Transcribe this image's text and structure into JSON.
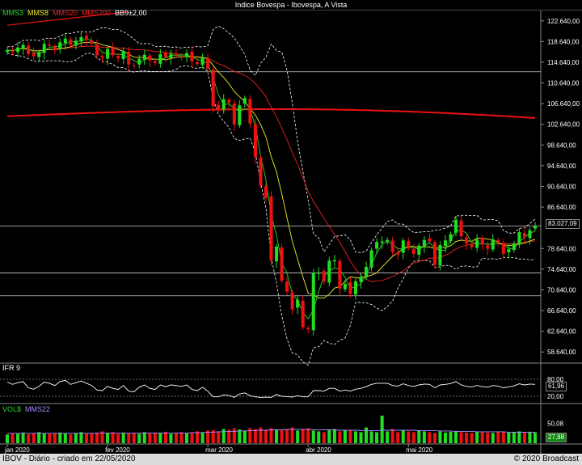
{
  "window": {
    "title": "Indice Bovespa - Ibovespa, A Vista"
  },
  "main_legend": [
    {
      "label": "MMS3",
      "color": "#22dd22"
    },
    {
      "label": "MMS8",
      "color": "#eeee22"
    },
    {
      "label": "MMS20",
      "color": "#ee2222"
    },
    {
      "label": "MMS200",
      "color": "#ee2222"
    },
    {
      "label": "BB9±2,00",
      "color": "#ffffff"
    }
  ],
  "ifr_legend": {
    "label": "IFR 9",
    "color": "#ffffff"
  },
  "vol_legend": [
    {
      "label": "VOL$",
      "color": "#22dd22"
    },
    {
      "label": "MMS22",
      "color": "#aa88ff"
    }
  ],
  "footer": {
    "left": "IBOV - Diário - criado em 22/05/2020",
    "right": "© 2020 Broadcast"
  },
  "colors": {
    "up": "#22dd22",
    "down": "#ee1111",
    "grid": "#555555",
    "hline": "#cccccc"
  },
  "chart_data": {
    "type": "candlestick",
    "price_axis": {
      "ylim": [
        56640,
        124640
      ],
      "ticks": [
        122640,
        118640,
        114640,
        110640,
        106640,
        102640,
        98640,
        94640,
        90640,
        86640,
        78640,
        74640,
        70640,
        66640,
        62640,
        58640
      ],
      "tick_labels": [
        "122.640,00",
        "118.640,00",
        "114.640,00",
        "110.640,00",
        "106.640,00",
        "102.640,00",
        "98.640,00",
        "94.640,00",
        "90.640,00",
        "86.640,00",
        "78.640,00",
        "74.640,00",
        "70.640,00",
        "66.640,00",
        "62.640,00",
        "58.640,00"
      ],
      "last_value": 83027.09,
      "last_label": "83.027,09"
    },
    "horizontal_lines": [
      112800,
      83000,
      73900,
      69500
    ],
    "x_labels": [
      {
        "label": "jan 2020",
        "index": 0
      },
      {
        "label": "fev 2020",
        "index": 19
      },
      {
        "label": "mar 2020",
        "index": 38
      },
      {
        "label": "abr 2020",
        "index": 57
      },
      {
        "label": "mai 2020",
        "index": 76
      }
    ],
    "closes": [
      117000,
      116800,
      117500,
      118000,
      116200,
      115800,
      116600,
      118200,
      117800,
      117000,
      118500,
      119200,
      118000,
      118800,
      119500,
      119000,
      118200,
      116000,
      115500,
      117200,
      116000,
      115400,
      116800,
      114200,
      113900,
      115300,
      116100,
      115000,
      114500,
      116200,
      115600,
      116300,
      116000,
      115800,
      116400,
      114800,
      114300,
      115500,
      113400,
      106100,
      105600,
      107500,
      106800,
      102600,
      106300,
      107700,
      102800,
      96300,
      90800,
      88400,
      76300,
      79000,
      72400,
      70300,
      66900,
      68700,
      63400,
      63000,
      73900,
      74000,
      72200,
      76300,
      76400,
      70900,
      71800,
      69900,
      72300,
      73200,
      75100,
      78300,
      79900,
      80000,
      80300,
      78000,
      77500,
      80200,
      78700,
      77600,
      79200,
      80300,
      80000,
      75500,
      79300,
      80200,
      81400,
      84200,
      81000,
      79600,
      78900,
      80400,
      79400,
      78600,
      80400,
      79900,
      77600,
      78500,
      79600,
      81800,
      80800,
      82200,
      83000
    ]
  },
  "ifr_data": {
    "levels": [
      80,
      20
    ],
    "last_value": 61.96,
    "last_label": "61,96",
    "values": [
      70,
      62,
      68,
      72,
      50,
      45,
      55,
      70,
      66,
      58,
      72,
      76,
      62,
      68,
      74,
      66,
      58,
      42,
      40,
      55,
      48,
      44,
      58,
      38,
      36,
      52,
      60,
      48,
      44,
      60,
      54,
      60,
      58,
      55,
      60,
      44,
      40,
      52,
      38,
      18,
      18,
      25,
      23,
      16,
      28,
      32,
      22,
      18,
      16,
      17,
      16,
      26,
      20,
      19,
      17,
      22,
      18,
      18,
      40,
      40,
      38,
      48,
      48,
      38,
      42,
      38,
      45,
      48,
      54,
      62,
      66,
      66,
      66,
      58,
      56,
      64,
      58,
      55,
      60,
      63,
      62,
      50,
      60,
      62,
      65,
      72,
      60,
      55,
      53,
      58,
      54,
      52,
      58,
      56,
      50,
      53,
      57,
      64,
      60,
      63,
      61.96
    ]
  },
  "volume_data": {
    "axis_labels": [
      "50,08",
      "27,88"
    ],
    "ylim": [
      0,
      72
    ],
    "values": [
      22,
      25,
      24,
      27,
      23,
      26,
      28,
      25,
      24,
      26,
      27,
      25,
      23,
      26,
      28,
      24,
      25,
      27,
      30,
      26,
      28,
      24,
      27,
      25,
      26,
      24,
      28,
      25,
      27,
      26,
      29,
      24,
      26,
      28,
      25,
      27,
      30,
      28,
      32,
      33,
      30,
      36,
      34,
      38,
      35,
      32,
      38,
      36,
      40,
      34,
      38,
      35,
      33,
      36,
      40,
      32,
      34,
      38,
      32,
      30,
      28,
      34,
      36,
      30,
      32,
      34,
      30,
      28,
      40,
      30,
      28,
      70,
      30,
      36,
      28,
      32,
      30,
      28,
      33,
      30,
      28,
      26,
      30,
      27,
      29,
      31,
      28,
      27,
      26,
      29,
      28,
      27,
      26,
      30,
      28,
      27,
      29,
      30,
      28,
      29,
      27.88
    ],
    "ma_values": [
      25,
      25,
      25,
      25,
      25,
      25,
      25,
      25,
      25,
      25,
      25,
      25,
      25,
      25,
      25,
      25,
      25,
      25,
      26,
      26,
      26,
      26,
      26,
      26,
      26,
      26,
      26,
      26,
      26,
      26,
      26,
      26,
      26,
      26,
      26,
      27,
      27,
      27,
      28,
      28,
      29,
      29,
      30,
      30,
      31,
      31,
      32,
      32,
      33,
      33,
      34,
      34,
      34,
      35,
      35,
      35,
      35,
      35,
      34,
      34,
      34,
      34,
      34,
      33,
      33,
      33,
      33,
      32,
      32,
      32,
      32,
      33,
      33,
      33,
      33,
      33,
      33,
      33,
      32,
      32,
      32,
      32,
      31,
      31,
      31,
      30,
      30,
      30,
      30,
      29,
      29,
      29,
      29,
      29,
      29,
      28,
      28,
      28,
      28,
      28,
      28
    ]
  }
}
